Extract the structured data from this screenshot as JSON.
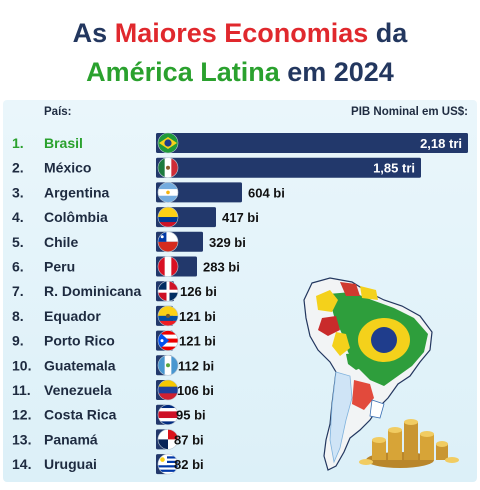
{
  "title": {
    "line1_part1": "As ",
    "line1_red": "Maiores Economias",
    "line1_part2": " da",
    "line2_green": "América Latina",
    "line2_part2": " em 2024"
  },
  "header": {
    "left": "País:",
    "right": "PIB Nominal em US$:"
  },
  "colors": {
    "bar": "#22386b",
    "title": "#23375f",
    "highlight": "#2aa12e",
    "accent": "#e0282d",
    "panel": "#e3f3fa"
  },
  "chart_data": {
    "type": "bar",
    "orientation": "horizontal",
    "unit": "US$ bilhões",
    "categories": [
      "Brasil",
      "México",
      "Argentina",
      "Colômbia",
      "Chile",
      "Peru",
      "R. Dominicana",
      "Equador",
      "Porto Rico",
      "Guatemala",
      "Venezuela",
      "Costa Rica",
      "Panamá",
      "Uruguai"
    ],
    "ranks": [
      "1.",
      "2.",
      "3.",
      "4.",
      "5.",
      "6.",
      "7.",
      "8.",
      "9.",
      "10.",
      "11.",
      "12.",
      "13.",
      "14."
    ],
    "values": [
      2180,
      1850,
      604,
      417,
      329,
      283,
      126,
      121,
      121,
      112,
      106,
      95,
      87,
      82
    ],
    "labels": [
      "2,18 tri",
      "1,85 tri",
      "604 bi",
      "417 bi",
      "329 bi",
      "283 bi",
      "126 bi",
      "121 bi",
      "121 bi",
      "112 bi",
      "106 bi",
      "95 bi",
      "87 bi",
      "82 bi"
    ],
    "flags": [
      "flag-brazil",
      "flag-mexico",
      "flag-argentina",
      "flag-colombia",
      "flag-chile",
      "flag-peru",
      "flag-dominican-republic",
      "flag-ecuador",
      "flag-puerto-rico",
      "flag-guatemala",
      "flag-venezuela",
      "flag-costa-rica",
      "flag-panama",
      "flag-uruguay"
    ]
  }
}
